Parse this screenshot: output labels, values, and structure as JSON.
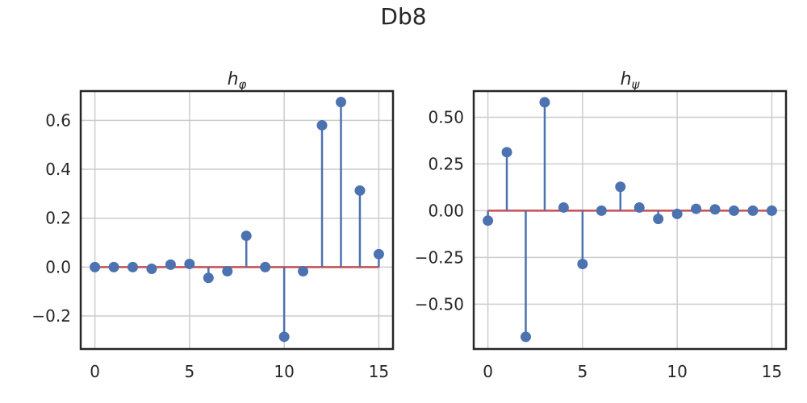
{
  "figure_title": "Db8",
  "chart_data": [
    {
      "type": "stem",
      "title": "h",
      "title_subscript": "φ",
      "xlabel": "",
      "ylabel": "",
      "grid": true,
      "xlim": [
        -0.75,
        15.75
      ],
      "ylim": [
        -0.335,
        0.72
      ],
      "xticks": [
        0,
        5,
        10,
        15
      ],
      "yticks": [
        -0.2,
        0.0,
        0.2,
        0.4,
        0.6
      ],
      "xtick_labels": [
        "0",
        "5",
        "10",
        "15"
      ],
      "ytick_labels": [
        "−0.2",
        "0.0",
        "0.2",
        "0.4",
        "0.6"
      ],
      "baseline": 0,
      "x": [
        0,
        1,
        2,
        3,
        4,
        5,
        6,
        7,
        8,
        9,
        10,
        11,
        12,
        13,
        14,
        15
      ],
      "values": [
        0.0,
        0.0,
        0.0,
        -0.007,
        0.01,
        0.013,
        -0.044,
        -0.017,
        0.128,
        0.0,
        -0.285,
        -0.017,
        0.58,
        0.675,
        0.313,
        0.053
      ],
      "colors": {
        "stem": "#4c72b0",
        "marker": "#4c72b0",
        "baseline": "#c44e52"
      }
    },
    {
      "type": "stem",
      "title": "h",
      "title_subscript": "ψ",
      "xlabel": "",
      "ylabel": "",
      "grid": true,
      "xlim": [
        -0.75,
        15.75
      ],
      "ylim": [
        -0.74,
        0.64
      ],
      "xticks": [
        0,
        5,
        10,
        15
      ],
      "yticks": [
        -0.5,
        -0.25,
        0.0,
        0.25,
        0.5
      ],
      "xtick_labels": [
        "0",
        "5",
        "10",
        "15"
      ],
      "ytick_labels": [
        "−0.50",
        "−0.25",
        "0.00",
        "0.25",
        "0.50"
      ],
      "baseline": 0,
      "x": [
        0,
        1,
        2,
        3,
        4,
        5,
        6,
        7,
        8,
        9,
        10,
        11,
        12,
        13,
        14,
        15
      ],
      "values": [
        -0.053,
        0.313,
        -0.675,
        0.58,
        0.017,
        -0.285,
        0.0,
        0.128,
        0.017,
        -0.044,
        -0.017,
        0.01,
        0.007,
        0.0,
        0.0,
        0.0
      ],
      "colors": {
        "stem": "#4c72b0",
        "marker": "#4c72b0",
        "baseline": "#c44e52"
      }
    }
  ]
}
